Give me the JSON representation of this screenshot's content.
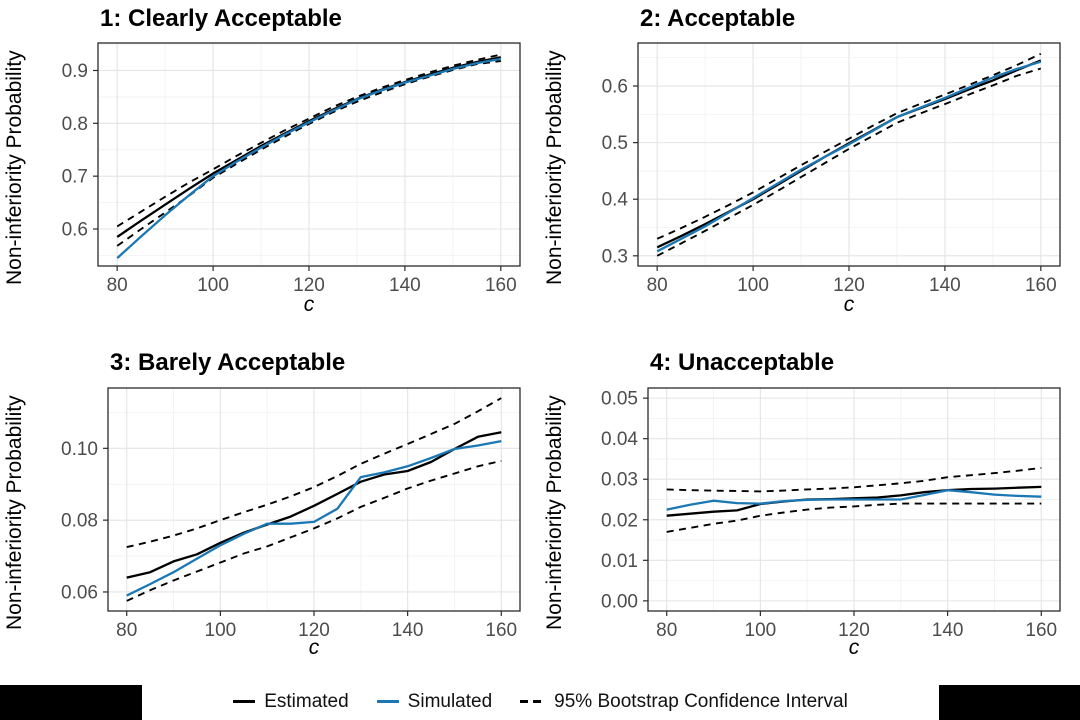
{
  "figure": {
    "ylabel": "Non-inferiority Probability",
    "xlabel": "c"
  },
  "colors": {
    "estimated": "#000000",
    "simulated": "#1b78b5",
    "ci": "#000000",
    "tick_text": "#4d4d4d",
    "grid_major": "#e4e4e4",
    "grid_minor": "#f2f2f2",
    "panel_border": "#2b2b2b",
    "panel_bg": "#ffffff"
  },
  "legend": {
    "items": [
      {
        "key": "solid-black",
        "label": "Estimated"
      },
      {
        "key": "solid-blue",
        "label": "Simulated"
      },
      {
        "key": "dashed-black",
        "label": "95% Bootstrap Confidence Interval"
      }
    ]
  },
  "chart_data": [
    {
      "type": "line",
      "title": "1: Clearly Acceptable",
      "xlabel": "c",
      "ylabel": "Non-inferiority Probability",
      "x": [
        80,
        85,
        90,
        95,
        100,
        105,
        110,
        115,
        120,
        125,
        130,
        135,
        140,
        145,
        150,
        155,
        160
      ],
      "series": [
        {
          "name": "Estimated",
          "style": "solid",
          "color_key": "estimated",
          "values": [
            0.585,
            0.616,
            0.646,
            0.676,
            0.705,
            0.731,
            0.757,
            0.781,
            0.804,
            0.826,
            0.846,
            0.863,
            0.878,
            0.892,
            0.905,
            0.916,
            0.925
          ]
        },
        {
          "name": "Simulated",
          "style": "solid",
          "color_key": "simulated",
          "values": [
            0.545,
            0.586,
            0.626,
            0.664,
            0.7,
            0.728,
            0.754,
            0.779,
            0.802,
            0.824,
            0.845,
            0.862,
            0.877,
            0.89,
            0.903,
            0.914,
            0.922
          ]
        },
        {
          "name": "95% Bootstrap CI upper",
          "style": "dashed",
          "color_key": "ci",
          "values": [
            0.605,
            0.633,
            0.661,
            0.688,
            0.713,
            0.739,
            0.763,
            0.787,
            0.809,
            0.831,
            0.85,
            0.867,
            0.882,
            0.896,
            0.909,
            0.92,
            0.93
          ]
        },
        {
          "name": "95% Bootstrap CI lower",
          "style": "dashed",
          "color_key": "ci",
          "values": [
            0.568,
            0.6,
            0.631,
            0.663,
            0.697,
            0.724,
            0.75,
            0.775,
            0.799,
            0.821,
            0.841,
            0.858,
            0.874,
            0.888,
            0.901,
            0.912,
            0.918
          ]
        }
      ],
      "xlim": [
        76,
        164
      ],
      "ylim": [
        0.53,
        0.952
      ],
      "xticks": {
        "values": [
          80,
          100,
          120,
          140,
          160
        ],
        "labels": [
          "80",
          "100",
          "120",
          "140",
          "160"
        ]
      },
      "xminor": [
        90,
        110,
        130,
        150
      ],
      "yticks": {
        "values": [
          0.6,
          0.7,
          0.8,
          0.9
        ],
        "labels": [
          "0.6",
          "0.7",
          "0.8",
          "0.9"
        ]
      },
      "yminor": [
        0.55,
        0.65,
        0.75,
        0.85,
        0.95
      ],
      "grid": true,
      "legend_position": "bottom"
    },
    {
      "type": "line",
      "title": "2: Acceptable",
      "xlabel": "c",
      "ylabel": "Non-inferiority Probability",
      "x": [
        80,
        85,
        90,
        95,
        100,
        105,
        110,
        115,
        120,
        125,
        130,
        135,
        140,
        145,
        150,
        155,
        160
      ],
      "series": [
        {
          "name": "Estimated",
          "style": "solid",
          "color_key": "estimated",
          "values": [
            0.315,
            0.335,
            0.356,
            0.378,
            0.4,
            0.425,
            0.45,
            0.475,
            0.499,
            0.522,
            0.545,
            0.561,
            0.577,
            0.594,
            0.61,
            0.628,
            0.645
          ]
        },
        {
          "name": "Simulated",
          "style": "solid",
          "color_key": "simulated",
          "values": [
            0.308,
            0.33,
            0.352,
            0.377,
            0.402,
            0.427,
            0.452,
            0.475,
            0.497,
            0.521,
            0.545,
            0.562,
            0.579,
            0.597,
            0.615,
            0.63,
            0.643
          ]
        },
        {
          "name": "95% Bootstrap CI upper",
          "style": "dashed",
          "color_key": "ci",
          "values": [
            0.33,
            0.349,
            0.369,
            0.39,
            0.412,
            0.436,
            0.46,
            0.484,
            0.507,
            0.53,
            0.552,
            0.569,
            0.585,
            0.602,
            0.619,
            0.637,
            0.657
          ]
        },
        {
          "name": "95% Bootstrap CI lower",
          "style": "dashed",
          "color_key": "ci",
          "values": [
            0.3,
            0.322,
            0.344,
            0.367,
            0.39,
            0.414,
            0.439,
            0.464,
            0.489,
            0.512,
            0.535,
            0.552,
            0.568,
            0.585,
            0.601,
            0.618,
            0.631
          ]
        }
      ],
      "xlim": [
        76,
        164
      ],
      "ylim": [
        0.282,
        0.676
      ],
      "xticks": {
        "values": [
          80,
          100,
          120,
          140,
          160
        ],
        "labels": [
          "80",
          "100",
          "120",
          "140",
          "160"
        ]
      },
      "xminor": [
        90,
        110,
        130,
        150
      ],
      "yticks": {
        "values": [
          0.3,
          0.4,
          0.5,
          0.6
        ],
        "labels": [
          "0.3",
          "0.4",
          "0.5",
          "0.6"
        ]
      },
      "yminor": [
        0.35,
        0.45,
        0.55,
        0.65
      ],
      "grid": true,
      "legend_position": "bottom"
    },
    {
      "type": "line",
      "title": "3: Barely Acceptable",
      "xlabel": "c",
      "ylabel": "Non-inferiority Probability",
      "x": [
        80,
        85,
        90,
        95,
        100,
        105,
        110,
        115,
        120,
        125,
        130,
        135,
        140,
        145,
        150,
        155,
        160
      ],
      "series": [
        {
          "name": "Estimated",
          "style": "solid",
          "color_key": "estimated",
          "values": [
            0.064,
            0.0655,
            0.0685,
            0.0705,
            0.0737,
            0.0765,
            0.0788,
            0.081,
            0.084,
            0.0873,
            0.0907,
            0.0927,
            0.0937,
            0.0962,
            0.0998,
            0.1032,
            0.1045
          ]
        },
        {
          "name": "Simulated",
          "style": "solid",
          "color_key": "simulated",
          "values": [
            0.059,
            0.0622,
            0.0655,
            0.0693,
            0.073,
            0.0762,
            0.079,
            0.079,
            0.0795,
            0.0832,
            0.092,
            0.0933,
            0.095,
            0.0973,
            0.0998,
            0.1008,
            0.102
          ]
        },
        {
          "name": "95% Bootstrap CI upper",
          "style": "dashed",
          "color_key": "ci",
          "values": [
            0.0725,
            0.074,
            0.0757,
            0.0777,
            0.08,
            0.0822,
            0.0843,
            0.0866,
            0.0892,
            0.0923,
            0.0957,
            0.0985,
            0.1012,
            0.104,
            0.1068,
            0.1103,
            0.114
          ]
        },
        {
          "name": "95% Bootstrap CI lower",
          "style": "dashed",
          "color_key": "ci",
          "values": [
            0.0575,
            0.0605,
            0.0632,
            0.0657,
            0.0682,
            0.0707,
            0.0727,
            0.0752,
            0.0777,
            0.0805,
            0.0837,
            0.0862,
            0.0888,
            0.091,
            0.093,
            0.095,
            0.0965
          ]
        }
      ],
      "xlim": [
        76,
        164
      ],
      "ylim": [
        0.0547,
        0.1168
      ],
      "xticks": {
        "values": [
          80,
          100,
          120,
          140,
          160
        ],
        "labels": [
          "80",
          "100",
          "120",
          "140",
          "160"
        ]
      },
      "xminor": [
        90,
        110,
        130,
        150
      ],
      "yticks": {
        "values": [
          0.06,
          0.08,
          0.1
        ],
        "labels": [
          "0.06",
          "0.08",
          "0.10"
        ]
      },
      "yminor": [
        0.07,
        0.09,
        0.11
      ],
      "grid": true,
      "legend_position": "bottom"
    },
    {
      "type": "line",
      "title": "4: Unacceptable",
      "xlabel": "c",
      "ylabel": "Non-inferiority Probability",
      "x": [
        80,
        85,
        90,
        95,
        100,
        105,
        110,
        115,
        120,
        125,
        130,
        135,
        140,
        145,
        150,
        155,
        160
      ],
      "series": [
        {
          "name": "Estimated",
          "style": "solid",
          "color_key": "estimated",
          "values": [
            0.021,
            0.0215,
            0.022,
            0.0223,
            0.0239,
            0.0245,
            0.025,
            0.0251,
            0.0253,
            0.0255,
            0.026,
            0.0268,
            0.0273,
            0.0276,
            0.0277,
            0.0279,
            0.0281
          ]
        },
        {
          "name": "Simulated",
          "style": "solid",
          "color_key": "simulated",
          "values": [
            0.0225,
            0.0237,
            0.0247,
            0.0241,
            0.024,
            0.0246,
            0.0249,
            0.025,
            0.025,
            0.025,
            0.025,
            0.0261,
            0.0273,
            0.0268,
            0.0262,
            0.0259,
            0.0257
          ]
        },
        {
          "name": "95% Bootstrap CI upper",
          "style": "dashed",
          "color_key": "ci",
          "values": [
            0.0275,
            0.0273,
            0.0272,
            0.0271,
            0.027,
            0.0272,
            0.0275,
            0.0277,
            0.028,
            0.0285,
            0.029,
            0.0296,
            0.0305,
            0.031,
            0.0315,
            0.0321,
            0.0328
          ]
        },
        {
          "name": "95% Bootstrap CI lower",
          "style": "dashed",
          "color_key": "ci",
          "values": [
            0.017,
            0.018,
            0.019,
            0.0198,
            0.021,
            0.0218,
            0.0225,
            0.023,
            0.0233,
            0.0237,
            0.024,
            0.024,
            0.024,
            0.024,
            0.024,
            0.024,
            0.024
          ]
        }
      ],
      "xlim": [
        76,
        164
      ],
      "ylim": [
        -0.0025,
        0.0525
      ],
      "xticks": {
        "values": [
          80,
          100,
          120,
          140,
          160
        ],
        "labels": [
          "80",
          "100",
          "120",
          "140",
          "160"
        ]
      },
      "xminor": [
        90,
        110,
        130,
        150
      ],
      "yticks": {
        "values": [
          0.0,
          0.01,
          0.02,
          0.03,
          0.04,
          0.05
        ],
        "labels": [
          "0.00",
          "0.01",
          "0.02",
          "0.03",
          "0.04",
          "0.05"
        ]
      },
      "yminor": [
        0.005,
        0.015,
        0.025,
        0.035,
        0.045
      ],
      "grid": true,
      "legend_position": "bottom"
    }
  ]
}
